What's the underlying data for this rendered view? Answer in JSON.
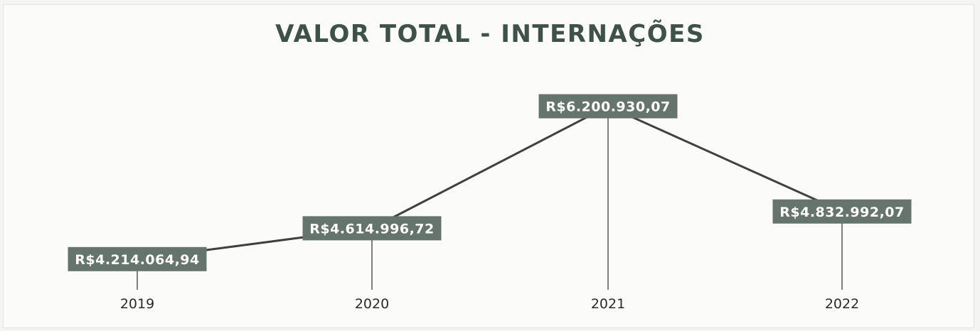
{
  "chart_data": {
    "type": "line",
    "title": "VALOR TOTAL  - INTERNAÇÕES",
    "categories": [
      "2019",
      "2020",
      "2021",
      "2022"
    ],
    "series": [
      {
        "values": [
          4214064.94,
          4614996.72,
          6200930.07,
          4832992.07
        ],
        "labels": [
          "R$4.214.064,94",
          "R$4.614.996,72",
          "R$6.200.930,07",
          "R$4.832.992,07"
        ]
      }
    ],
    "xlabel": "",
    "ylabel": "",
    "ylim": [
      4000000,
      6400000
    ],
    "grid": false,
    "legend": "none",
    "colors": {
      "line": "#404040",
      "label_bg": "#65756e",
      "label_text": "#ffffff",
      "title": "#3f524a",
      "leader": "#3a3a3a"
    }
  }
}
